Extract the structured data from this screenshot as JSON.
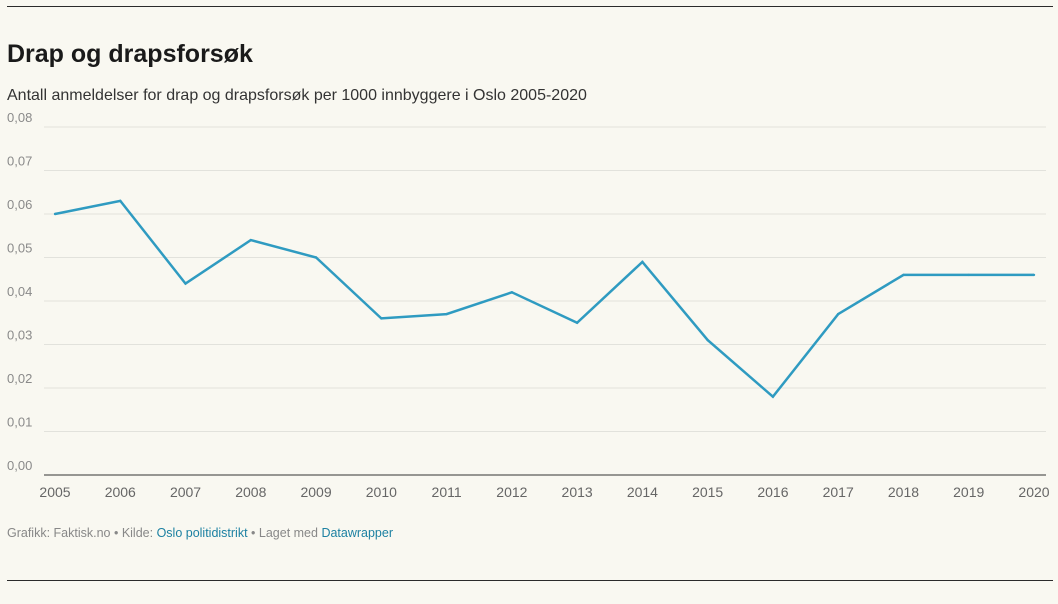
{
  "header": {
    "title": "Drap og drapsforsøk",
    "subtitle": "Antall anmeldelser for drap og drapsforsøk per 1000 innbyggere i Oslo 2005-2020"
  },
  "footer": {
    "credit_prefix": "Grafikk: Faktisk.no • Kilde: ",
    "source_link": "Oslo politidistrikt",
    "made_with_prefix": " • Laget med ",
    "tool_link": "Datawrapper"
  },
  "colors": {
    "line": "#2f9bc1",
    "grid": "#e2e2dc",
    "axis": "#333333",
    "tick_text": "#8a8a8a",
    "link": "#1d81a2"
  },
  "chart_data": {
    "type": "line",
    "title": "Drap og drapsforsøk",
    "subtitle": "Antall anmeldelser for drap og drapsforsøk per 1000 innbyggere i Oslo 2005-2020",
    "x": [
      "2005",
      "2006",
      "2007",
      "2008",
      "2009",
      "2010",
      "2011",
      "2012",
      "2013",
      "2014",
      "2015",
      "2016",
      "2017",
      "2018",
      "2019",
      "2020"
    ],
    "series": [
      {
        "values": [
          0.06,
          0.063,
          0.044,
          0.054,
          0.05,
          0.036,
          0.037,
          0.042,
          0.035,
          0.049,
          0.031,
          0.018,
          0.037,
          0.046,
          0.046,
          0.046
        ]
      }
    ],
    "yticks": [
      "0,00",
      "0,01",
      "0,02",
      "0,03",
      "0,04",
      "0,05",
      "0,06",
      "0,07",
      "0,08"
    ],
    "ylim": [
      0,
      0.08
    ],
    "grid": true,
    "legend": "none"
  }
}
